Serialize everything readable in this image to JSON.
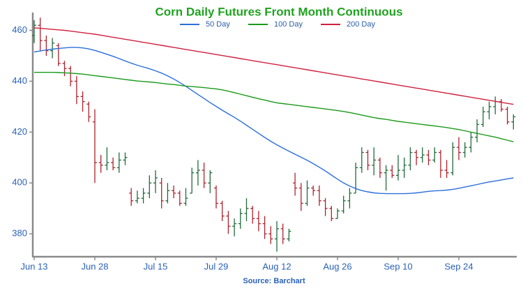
{
  "chart_data": {
    "type": "ohlc",
    "title": "Corn Daily Futures Front Month Continuous",
    "source": "Source: Barchart",
    "categories": [
      "Jun 13",
      null,
      null,
      null,
      null,
      null,
      null,
      null,
      null,
      null,
      "Jun 28",
      null,
      null,
      null,
      null,
      null,
      null,
      null,
      null,
      null,
      "Jul 15",
      null,
      null,
      null,
      null,
      null,
      null,
      null,
      null,
      null,
      "Jul 29",
      null,
      null,
      null,
      null,
      null,
      null,
      null,
      null,
      null,
      "Aug 12",
      null,
      null,
      null,
      null,
      null,
      null,
      null,
      null,
      null,
      "Aug 26",
      null,
      null,
      null,
      null,
      null,
      null,
      null,
      null,
      null,
      "Sep 10",
      null,
      null,
      null,
      null,
      null,
      null,
      null,
      null,
      null,
      "Sep 24",
      null,
      null,
      null,
      null,
      null,
      null,
      null,
      null,
      null
    ],
    "open": [
      458,
      462,
      456,
      452,
      454,
      447,
      445,
      440,
      434,
      431,
      424,
      408,
      407,
      408,
      406,
      409,
      396,
      393,
      394,
      396,
      400,
      400,
      393,
      397,
      396,
      392,
      396,
      404,
      405,
      400,
      398,
      392,
      387,
      383,
      384,
      388,
      390,
      386,
      384,
      380,
      378,
      382,
      378,
      400,
      398,
      392,
      398,
      397,
      393,
      390,
      386,
      389,
      393,
      396,
      406,
      412,
      407,
      409,
      404,
      405,
      403,
      405,
      407,
      412,
      410,
      411,
      409,
      412,
      405,
      404,
      414,
      412,
      414,
      418,
      423,
      428,
      430,
      432,
      429,
      424
    ],
    "high": [
      464,
      465,
      458,
      457,
      455,
      448,
      446,
      442,
      436,
      432,
      429,
      411,
      414,
      410,
      412,
      412,
      398,
      397,
      398,
      403,
      405,
      402,
      400,
      399,
      397,
      398,
      406,
      409,
      408,
      405,
      399,
      393,
      389,
      386,
      390,
      394,
      391,
      389,
      387,
      383,
      385,
      384,
      382,
      404,
      400,
      401,
      399,
      399,
      394,
      391,
      390,
      395,
      398,
      408,
      414,
      413,
      414,
      410,
      407,
      407,
      411,
      410,
      414,
      413,
      414,
      413,
      414,
      413,
      409,
      416,
      418,
      416,
      420,
      425,
      430,
      432,
      434,
      433,
      430,
      427
    ],
    "low": [
      455,
      452,
      450,
      449,
      446,
      442,
      438,
      431,
      428,
      424,
      400,
      404,
      405,
      405,
      404,
      407,
      391,
      392,
      392,
      394,
      396,
      390,
      392,
      394,
      391,
      391,
      396,
      399,
      398,
      396,
      390,
      385,
      380,
      379,
      382,
      385,
      384,
      381,
      378,
      376,
      373,
      376,
      377,
      395,
      389,
      391,
      395,
      391,
      387,
      385,
      386,
      388,
      390,
      396,
      404,
      405,
      403,
      402,
      397,
      402,
      401,
      402,
      405,
      407,
      408,
      407,
      408,
      402,
      402,
      403,
      409,
      410,
      412,
      416,
      422,
      425,
      427,
      428,
      423,
      421
    ],
    "close": [
      462,
      456,
      452,
      455,
      447,
      445,
      440,
      434,
      432,
      426,
      408,
      407,
      408,
      406,
      409,
      410,
      393,
      394,
      396,
      400,
      402,
      393,
      397,
      396,
      392,
      394,
      404,
      405,
      400,
      404,
      392,
      387,
      383,
      384,
      388,
      390,
      386,
      384,
      380,
      378,
      382,
      378,
      381,
      398,
      392,
      398,
      397,
      393,
      390,
      386,
      389,
      393,
      396,
      406,
      412,
      407,
      409,
      404,
      405,
      403,
      405,
      407,
      412,
      410,
      411,
      409,
      412,
      405,
      404,
      414,
      412,
      414,
      418,
      423,
      428,
      430,
      432,
      429,
      424,
      426
    ],
    "up_color": "#1f6b3a",
    "down_color": "#b0202c",
    "series": [
      {
        "name": "50 Day",
        "color": "#2a6fdb",
        "values": [
          451.5,
          451.9,
          452.3,
          452.6,
          452.9,
          453.1,
          453.3,
          453.3,
          453.1,
          452.7,
          452.1,
          451.4,
          450.6,
          449.8,
          448.9,
          448.0,
          447.1,
          446.3,
          445.6,
          444.9,
          444.1,
          443.2,
          442.1,
          440.9,
          439.5,
          438.0,
          436.4,
          434.8,
          433.2,
          431.6,
          430.1,
          428.6,
          427.2,
          425.8,
          424.3,
          422.7,
          421.1,
          419.5,
          417.9,
          416.4,
          415.0,
          413.7,
          412.5,
          411.3,
          410.1,
          408.9,
          407.6,
          406.2,
          404.7,
          403.1,
          401.5,
          400.0,
          398.8,
          397.8,
          397.0,
          396.5,
          396.1,
          395.9,
          395.8,
          395.8,
          395.8,
          395.8,
          395.9,
          396.1,
          396.4,
          396.7,
          396.9,
          397.0,
          397.2,
          397.5,
          397.9,
          398.4,
          398.9,
          399.4,
          399.9,
          400.4,
          400.8,
          401.2,
          401.6,
          402.0
        ]
      },
      {
        "name": "100 Day",
        "color": "#1a9a1a",
        "values": [
          443.5,
          443.5,
          443.5,
          443.5,
          443.4,
          443.3,
          443.2,
          443.0,
          442.8,
          442.5,
          442.2,
          441.9,
          441.6,
          441.3,
          441.0,
          440.7,
          440.4,
          440.1,
          439.9,
          439.7,
          439.5,
          439.2,
          438.9,
          438.7,
          438.4,
          438.1,
          437.9,
          437.7,
          437.5,
          437.2,
          437.0,
          436.6,
          436.1,
          435.5,
          434.9,
          434.3,
          433.7,
          433.1,
          432.6,
          432.0,
          431.5,
          431.2,
          430.9,
          430.6,
          430.3,
          430.0,
          429.7,
          429.4,
          429.1,
          428.8,
          428.5,
          428.1,
          427.7,
          427.2,
          426.7,
          426.2,
          425.7,
          425.3,
          425.0,
          424.6,
          424.2,
          423.9,
          423.6,
          423.3,
          423.0,
          422.7,
          422.4,
          422.1,
          421.8,
          421.4,
          421.0,
          420.5,
          420.0,
          419.5,
          419.0,
          418.5,
          418.0,
          417.4,
          416.8,
          416.2
        ]
      },
      {
        "name": "200 Day",
        "color": "#d0203f",
        "values": [
          461.0,
          460.8,
          460.6,
          460.4,
          460.2,
          460.0,
          459.7,
          459.4,
          459.1,
          458.8,
          458.5,
          458.1,
          457.7,
          457.3,
          456.9,
          456.5,
          456.1,
          455.7,
          455.3,
          454.9,
          454.5,
          454.1,
          453.7,
          453.3,
          452.9,
          452.5,
          452.1,
          451.7,
          451.3,
          450.9,
          450.5,
          450.1,
          449.7,
          449.3,
          448.9,
          448.5,
          448.1,
          447.7,
          447.3,
          446.9,
          446.5,
          446.1,
          445.7,
          445.3,
          444.9,
          444.5,
          444.1,
          443.7,
          443.3,
          442.9,
          442.5,
          442.1,
          441.7,
          441.3,
          440.9,
          440.5,
          440.1,
          439.7,
          439.3,
          438.9,
          438.5,
          438.1,
          437.7,
          437.3,
          436.9,
          436.5,
          436.1,
          435.7,
          435.3,
          434.9,
          434.5,
          434.1,
          433.7,
          433.3,
          432.9,
          432.5,
          432.1,
          431.7,
          431.3,
          430.9
        ]
      }
    ],
    "ylim": [
      371,
      467
    ],
    "yticks": [
      380,
      400,
      420,
      440,
      460
    ],
    "grid": false
  }
}
